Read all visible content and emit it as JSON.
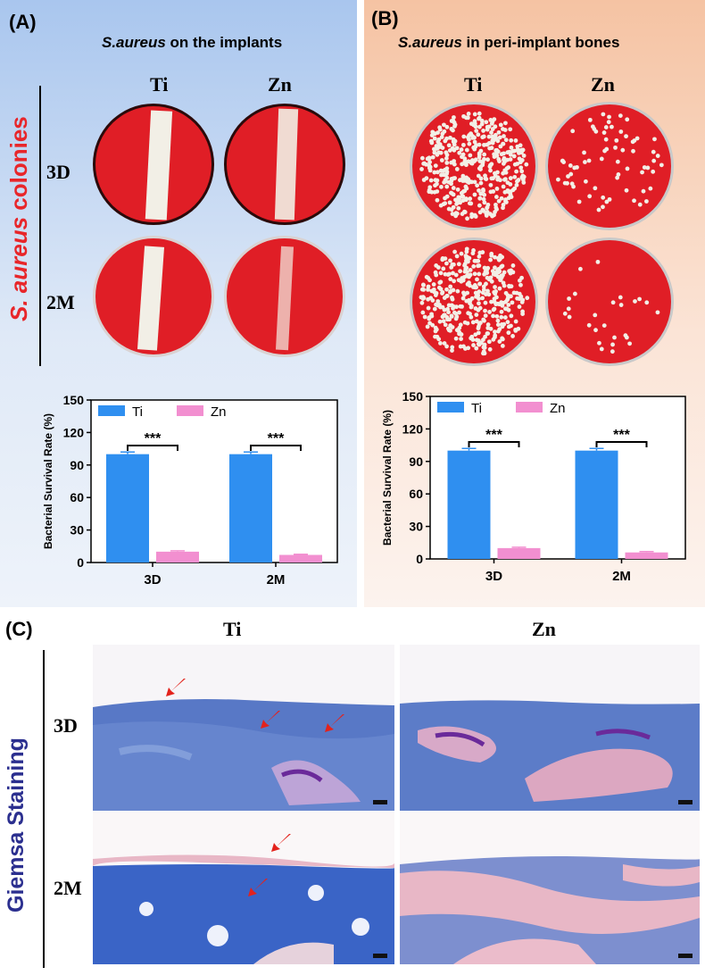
{
  "panels": {
    "a": {
      "label": "(A)",
      "title_italic": "S.aureus",
      "title_rest": " on the implants",
      "side_title_italic": "S. aureus",
      "side_title_rest": " colonies"
    },
    "b": {
      "label": "(B)",
      "title_italic": "S.aureus",
      "title_rest": " in peri-implant bones"
    },
    "c": {
      "label": "(C)",
      "side_title": "Giemsa Staining"
    }
  },
  "columns": {
    "ti": "Ti",
    "zn": "Zn"
  },
  "rows": {
    "d3": "3D",
    "m2": "2M"
  },
  "colors": {
    "ti_bar": "#2f8ff0",
    "zn_bar": "#f28fd0",
    "agar": "#e01e26",
    "colony": "#f2efe6",
    "stain_blue": "#5878c6",
    "stain_pink": "#e8b7c6",
    "arrow": "#e3221c",
    "side_title_red": "#e8262a",
    "side_title_blue": "#2b2f8f"
  },
  "chart_data": [
    {
      "type": "bar",
      "categories": [
        "3D",
        "2M"
      ],
      "series": [
        {
          "name": "Ti",
          "values": [
            100,
            100
          ],
          "errors": [
            2,
            2
          ]
        },
        {
          "name": "Zn",
          "values": [
            10,
            7
          ],
          "errors": [
            0.8,
            0.6
          ]
        }
      ],
      "xlabel": "",
      "ylabel": "Bacterial Survival Rate (%)",
      "ylim": [
        0,
        150
      ],
      "yticks": [
        0,
        30,
        60,
        90,
        120,
        150
      ],
      "significance": [
        "***",
        "***"
      ],
      "legend": "top-left",
      "grid": false
    },
    {
      "type": "bar",
      "categories": [
        "3D",
        "2M"
      ],
      "series": [
        {
          "name": "Ti",
          "values": [
            100,
            100
          ],
          "errors": [
            2,
            2
          ]
        },
        {
          "name": "Zn",
          "values": [
            10,
            6
          ],
          "errors": [
            0.8,
            0.8
          ]
        }
      ],
      "xlabel": "",
      "ylabel": "Bacterial Survival Rate (%)",
      "ylim": [
        0,
        150
      ],
      "yticks": [
        0,
        30,
        60,
        90,
        120,
        150
      ],
      "significance": [
        "***",
        "***"
      ],
      "legend": "top-left",
      "grid": false
    }
  ]
}
